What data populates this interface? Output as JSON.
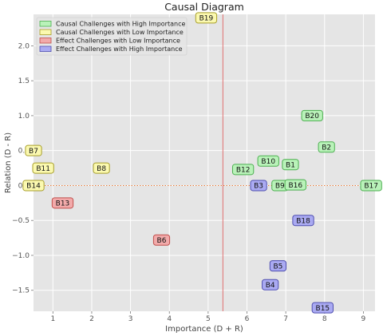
{
  "chart_data": {
    "type": "scatter",
    "title": "Causal Diagram",
    "xlabel": "Importance (D + R)",
    "ylabel": "Relation (D - R)",
    "xlim": [
      0.5,
      9.3
    ],
    "ylim": [
      -1.8,
      2.45
    ],
    "x_ticks": [
      1,
      2,
      3,
      4,
      5,
      6,
      7,
      8,
      9
    ],
    "y_ticks": [
      -1.5,
      -1.0,
      -0.5,
      0.0,
      0.5,
      1.0,
      1.5,
      2.0
    ],
    "y_tick_labels": [
      "−1.5",
      "−1.0",
      "−0.5",
      "0.0",
      "0.5",
      "1.0",
      "1.5",
      "2.0"
    ],
    "grid": true,
    "mean_importance": 5.38,
    "relation_zero": 0.0,
    "legend_position": "top-left",
    "series": [
      {
        "name": "Causal Challenges with High Importance",
        "fill": "#b9f2b9",
        "stroke": "#4caf50",
        "points": [
          {
            "label": "B20",
            "x": 7.68,
            "y": 1.0
          },
          {
            "label": "B2",
            "x": 8.05,
            "y": 0.55
          },
          {
            "label": "B10",
            "x": 6.55,
            "y": 0.35
          },
          {
            "label": "B1",
            "x": 7.12,
            "y": 0.3
          },
          {
            "label": "B12",
            "x": 5.9,
            "y": 0.23
          },
          {
            "label": "B9",
            "x": 6.85,
            "y": 0.0
          },
          {
            "label": "B16",
            "x": 7.25,
            "y": 0.01
          },
          {
            "label": "B17",
            "x": 9.2,
            "y": 0.0
          }
        ]
      },
      {
        "name": "Causal Challenges with Low Importance",
        "fill": "#fbf9b0",
        "stroke": "#a89f2a",
        "points": [
          {
            "label": "B19",
            "x": 4.95,
            "y": 2.4
          },
          {
            "label": "B7",
            "x": 0.5,
            "y": 0.5
          },
          {
            "label": "B11",
            "x": 0.75,
            "y": 0.25
          },
          {
            "label": "B8",
            "x": 2.25,
            "y": 0.25
          },
          {
            "label": "B14",
            "x": 0.5,
            "y": 0.0
          }
        ]
      },
      {
        "name": "Effect Challenges with Low Importance",
        "fill": "#f2aaaa",
        "stroke": "#c0504d",
        "points": [
          {
            "label": "B13",
            "x": 1.25,
            "y": -0.25
          },
          {
            "label": "B6",
            "x": 3.8,
            "y": -0.78
          }
        ]
      },
      {
        "name": "Effect Challenges with High Importance",
        "fill": "#aaaaf2",
        "stroke": "#4f4fb0",
        "points": [
          {
            "label": "B3",
            "x": 6.3,
            "y": 0.0
          },
          {
            "label": "B18",
            "x": 7.45,
            "y": -0.5
          },
          {
            "label": "B5",
            "x": 6.8,
            "y": -1.15
          },
          {
            "label": "B4",
            "x": 6.6,
            "y": -1.42
          },
          {
            "label": "B15",
            "x": 7.95,
            "y": -1.75
          }
        ]
      }
    ]
  }
}
